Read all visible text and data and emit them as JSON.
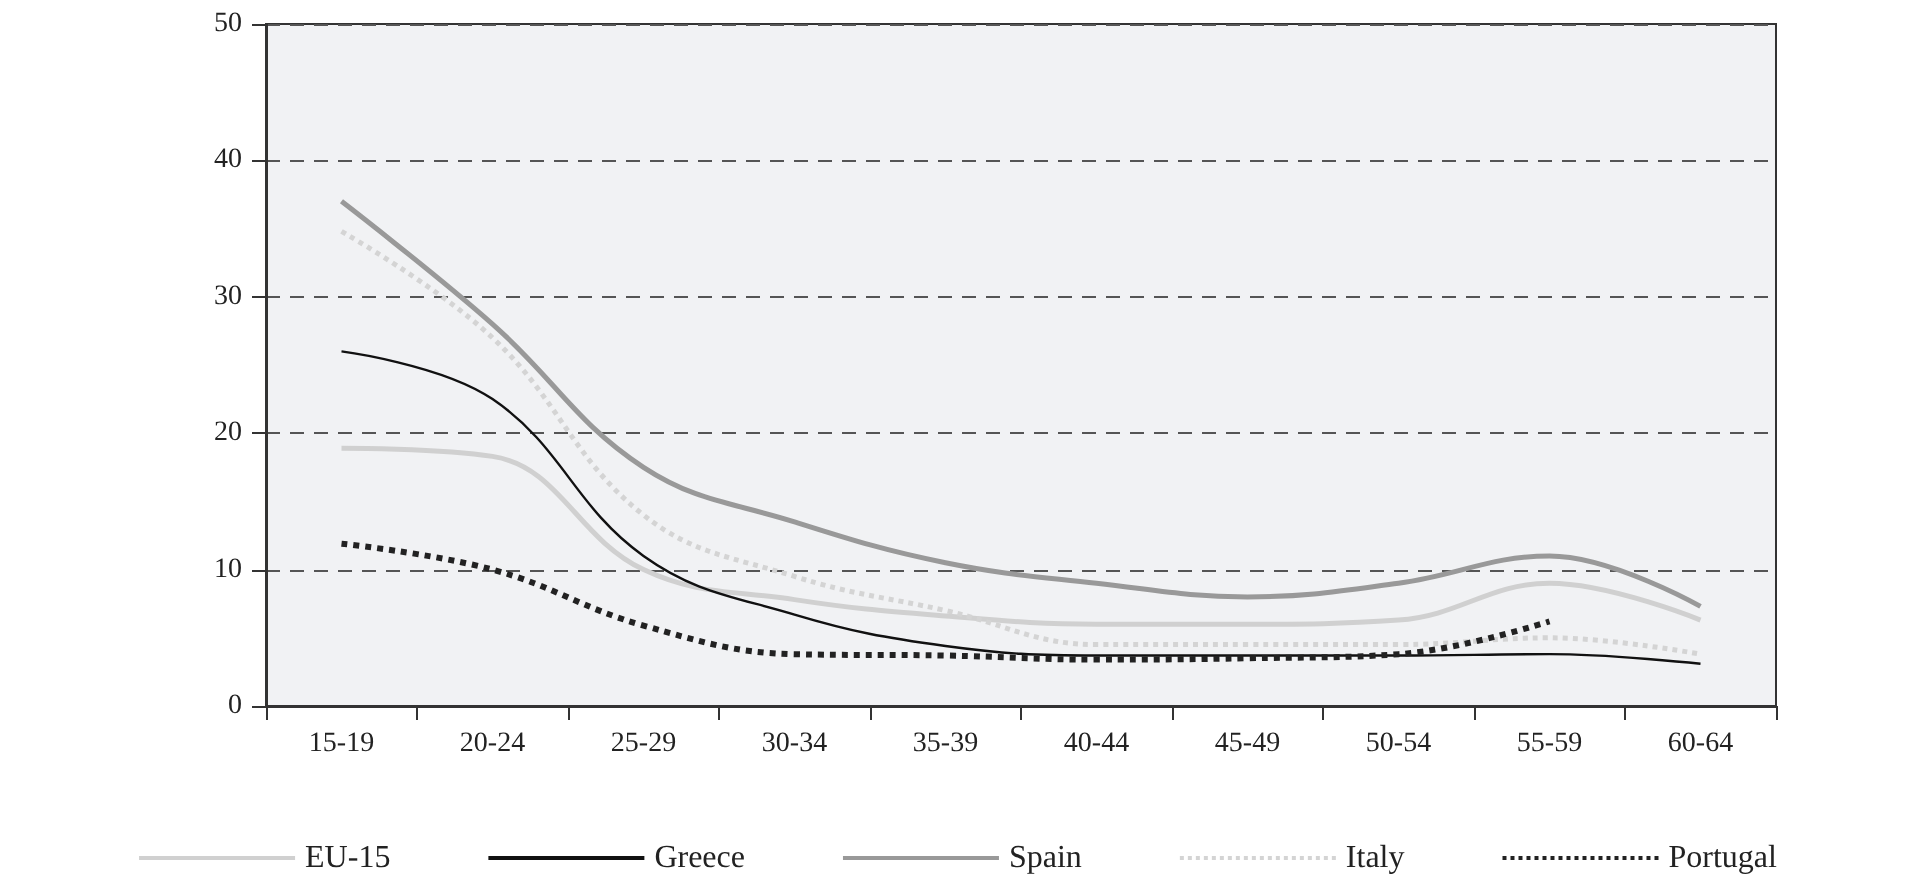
{
  "chart_data": {
    "type": "line",
    "categories": [
      "15-19",
      "20-24",
      "25-29",
      "30-34",
      "35-39",
      "40-44",
      "45-49",
      "50-54",
      "55-59",
      "60-64"
    ],
    "series": [
      {
        "name": "EU-15",
        "color": "#d0d0d0",
        "line_style": "solid",
        "values": [
          18.9,
          18.3,
          10,
          7.8,
          6.6,
          6,
          6,
          6.3,
          9,
          6.3
        ]
      },
      {
        "name": "Greece",
        "color": "#111111",
        "line_style": "solid",
        "values": [
          26,
          22.5,
          11,
          6.7,
          4.4,
          3.7,
          3.7,
          3.7,
          3.8,
          3.1
        ]
      },
      {
        "name": "Spain",
        "color": "#999999",
        "line_style": "solid",
        "values": [
          37,
          28,
          17.5,
          13.5,
          10.5,
          9,
          8,
          9,
          11,
          7.3
        ]
      },
      {
        "name": "Italy",
        "color": "#d4d4d4",
        "line_style": "dotted",
        "values": [
          34.8,
          27,
          14,
          9.5,
          7,
          4.5,
          4.5,
          4.5,
          5,
          3.8
        ]
      },
      {
        "name": "Portugal",
        "color": "#222222",
        "line_style": "dotted",
        "values": [
          11.9,
          10,
          5.9,
          3.8,
          3.7,
          3.4,
          3.5,
          3.8,
          6.2,
          null
        ]
      }
    ],
    "ylim": [
      0,
      50
    ],
    "yticks": [
      0,
      10,
      20,
      30,
      40,
      50
    ],
    "grid": "y",
    "legend": "bottom",
    "marker": "none"
  }
}
